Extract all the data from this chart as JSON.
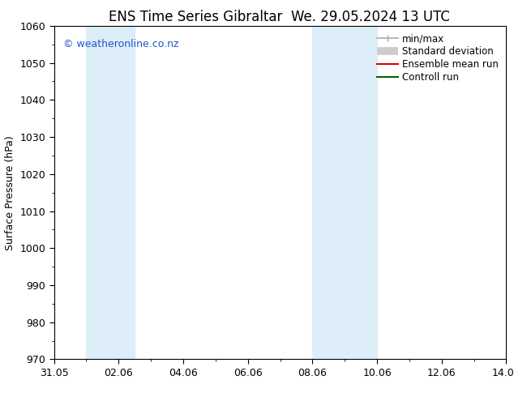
{
  "title_left": "ENS Time Series Gibraltar",
  "title_right": "We. 29.05.2024 13 UTC",
  "ylabel": "Surface Pressure (hPa)",
  "ylim": [
    970,
    1060
  ],
  "yticks": [
    970,
    980,
    990,
    1000,
    1010,
    1020,
    1030,
    1040,
    1050,
    1060
  ],
  "xtick_labels": [
    "31.05",
    "02.06",
    "04.06",
    "06.06",
    "08.06",
    "10.06",
    "12.06",
    "14.06"
  ],
  "xtick_positions": [
    0,
    2,
    4,
    6,
    8,
    10,
    12,
    14
  ],
  "weekend_bands": [
    {
      "start": 1.0,
      "end": 2.5
    },
    {
      "start": 8.0,
      "end": 10.0
    }
  ],
  "band_color": "#ddeef8",
  "background_color": "#ffffff",
  "copyright_text": "© weatheronline.co.nz",
  "legend_items": [
    {
      "label": "min/max",
      "color": "#aaaaaa",
      "lw": 1.2
    },
    {
      "label": "Standard deviation",
      "color": "#cccccc",
      "lw": 7
    },
    {
      "label": "Ensemble mean run",
      "color": "#dd0000",
      "lw": 1.5
    },
    {
      "label": "Controll run",
      "color": "#006600",
      "lw": 1.5
    }
  ],
  "title_fontsize": 12,
  "axis_label_fontsize": 9,
  "tick_fontsize": 9,
  "copyright_fontsize": 9,
  "legend_fontsize": 8.5
}
